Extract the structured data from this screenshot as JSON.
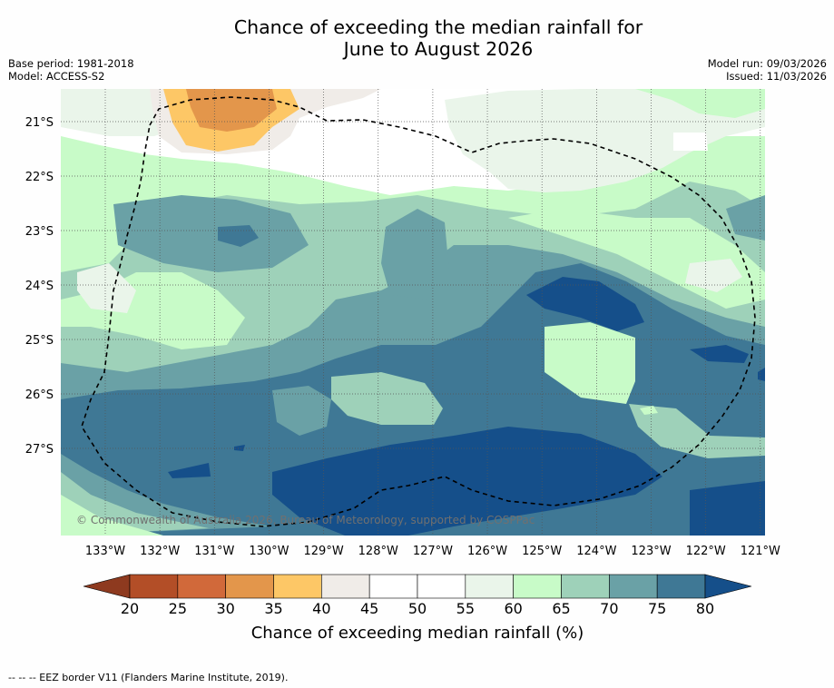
{
  "title": {
    "line1": "Chance of exceeding the median rainfall for",
    "line2": "June to August 2026"
  },
  "meta": {
    "base_period": "Base period: 1981-2018",
    "model": "Model: ACCESS-S2",
    "model_run": "Model run: 09/03/2026",
    "issued": "Issued: 11/03/2026"
  },
  "map": {
    "lat_labels": [
      "21°S",
      "22°S",
      "23°S",
      "24°S",
      "25°S",
      "26°S",
      "27°S"
    ],
    "lon_labels": [
      "133°W",
      "132°W",
      "131°W",
      "130°W",
      "129°W",
      "128°W",
      "127°W",
      "126°W",
      "125°W",
      "124°W",
      "123°W",
      "122°W",
      "121°W"
    ],
    "copyright": "© Commonwealth of Australia 2026, Bureau of Meteorology, supported by COSPPac"
  },
  "colorbar": {
    "ticks": [
      "20",
      "25",
      "30",
      "35",
      "40",
      "45",
      "50",
      "55",
      "60",
      "65",
      "70",
      "75",
      "80"
    ],
    "label": "Chance of exceeding median rainfall (%)",
    "colors": [
      "#8e3a1f",
      "#b34e27",
      "#d1693a",
      "#e3964b",
      "#fdc766",
      "#f0ece8",
      "#ffffff",
      "#ffffff",
      "#eaf5ea",
      "#c8fbc8",
      "#9ed1b9",
      "#6aa1a6",
      "#3f7895",
      "#154f8a"
    ]
  },
  "footer": "--  --  -- EEZ border V11 (Flanders Marine Institute, 2019)."
}
